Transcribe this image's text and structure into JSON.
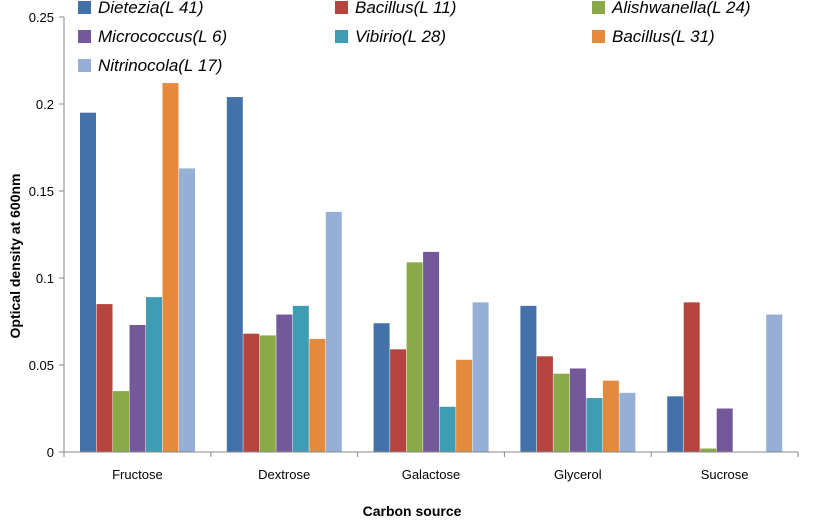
{
  "chart_data": {
    "type": "bar",
    "title": "",
    "xlabel": "Carbon source",
    "ylabel": "Optical density  at 600nm",
    "ylim": [
      0,
      0.25
    ],
    "yticks": [
      "0",
      "0.05",
      "0.1",
      "0.15",
      "0.2",
      "0.25"
    ],
    "grid": false,
    "legend_position": "top",
    "categories": [
      "Fructose",
      "Dextrose",
      "Galactose",
      "Glycerol",
      "Sucrose"
    ],
    "series": [
      {
        "name": "Dietezia(L 41)",
        "color": "#4472a8",
        "values": [
          0.195,
          0.204,
          0.074,
          0.084,
          0.032
        ]
      },
      {
        "name": "Bacillus(L 11)",
        "color": "#b5443f",
        "values": [
          0.085,
          0.068,
          0.059,
          0.055,
          0.086
        ]
      },
      {
        "name": "Alishwanella(L 24)",
        "color": "#8aaa4a",
        "values": [
          0.035,
          0.067,
          0.109,
          0.045,
          0.002
        ]
      },
      {
        "name": "Micrococcus(L 6)",
        "color": "#73589a",
        "values": [
          0.073,
          0.079,
          0.115,
          0.048,
          0.025
        ]
      },
      {
        "name": "Vibirio(L 28)",
        "color": "#3e9db3",
        "values": [
          0.089,
          0.084,
          0.026,
          0.031,
          0
        ]
      },
      {
        "name": "Bacillus(L 31)",
        "color": "#e38a3d",
        "values": [
          0.212,
          0.065,
          0.053,
          0.041,
          0
        ]
      },
      {
        "name": "Nitrinocola(L 17)",
        "color": "#95afd7",
        "values": [
          0.163,
          0.138,
          0.086,
          0.034,
          0.079
        ]
      }
    ]
  }
}
